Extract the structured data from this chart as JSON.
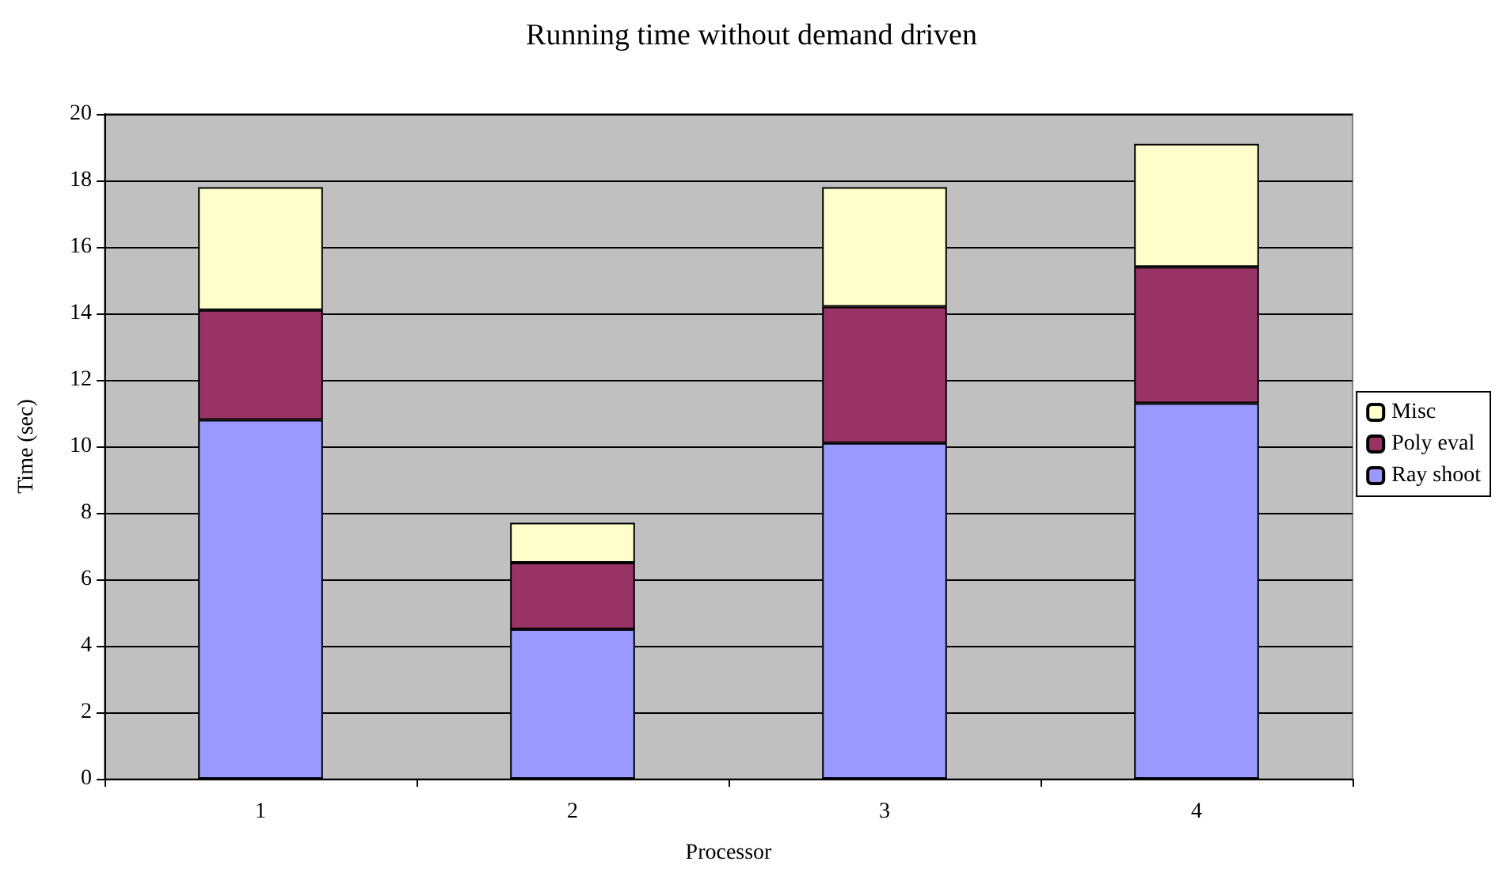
{
  "chart_data": {
    "type": "bar",
    "title": "Running time without demand driven",
    "xlabel": "Processor",
    "ylabel": "Time (sec)",
    "categories": [
      "1",
      "2",
      "3",
      "4"
    ],
    "stacked": true,
    "series": [
      {
        "name": "Ray shoot",
        "color": "#9999ff",
        "values": [
          10.8,
          4.5,
          10.1,
          11.3
        ]
      },
      {
        "name": "Poly eval",
        "color": "#993366",
        "values": [
          3.3,
          2.0,
          4.1,
          4.1
        ]
      },
      {
        "name": "Misc",
        "color": "#ffffcc",
        "values": [
          3.7,
          1.2,
          3.6,
          3.7
        ]
      }
    ],
    "ylim": [
      0,
      20
    ],
    "yticks": [
      0,
      2,
      4,
      6,
      8,
      10,
      12,
      14,
      16,
      18,
      20
    ],
    "grid": "y",
    "legend": "right"
  }
}
